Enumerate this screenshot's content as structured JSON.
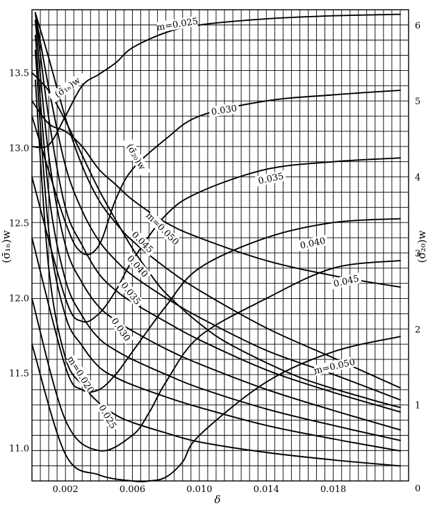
{
  "chart_data": {
    "type": "line",
    "title": "",
    "xlabel": "δ",
    "ylabel_left": "(σ̄₁ₙ)w",
    "ylabel_right": "(σ̄₂₀)w",
    "xlim": [
      0.0,
      0.0225
    ],
    "ylim_left": [
      10.78,
      13.92
    ],
    "ylim_right": [
      0,
      6.2
    ],
    "x_ticks": [
      "0.002",
      "0.006",
      "0.010",
      "0.014",
      "0.018"
    ],
    "y_left_ticks": [
      "11.0",
      "11.5",
      "12.0",
      "12.5",
      "13.0",
      "13.5"
    ],
    "y_right_ticks": [
      "0",
      "1",
      "2",
      "3",
      "4",
      "5",
      "6"
    ],
    "grid": true,
    "series": [
      {
        "name": "0.025",
        "axis": "left",
        "x": [
          0.0002,
          0.001,
          0.002,
          0.003,
          0.004,
          0.005,
          0.006,
          0.008,
          0.01,
          0.014,
          0.018,
          0.022
        ],
        "y": [
          13.65,
          12.45,
          11.88,
          11.68,
          11.54,
          11.47,
          11.42,
          11.34,
          11.27,
          11.15,
          11.06,
          10.98
        ]
      },
      {
        "name": "0.030",
        "axis": "left",
        "x": [
          0.0002,
          0.001,
          0.002,
          0.003,
          0.004,
          0.005,
          0.006,
          0.008,
          0.01,
          0.014,
          0.018,
          0.022
        ],
        "y": [
          13.75,
          12.7,
          12.12,
          11.88,
          11.73,
          11.65,
          11.59,
          11.49,
          11.4,
          11.26,
          11.15,
          11.05
        ]
      },
      {
        "name": "0.035",
        "axis": "left",
        "x": [
          0.0002,
          0.001,
          0.002,
          0.003,
          0.004,
          0.005,
          0.006,
          0.008,
          0.01,
          0.014,
          0.018,
          0.022
        ],
        "y": [
          13.85,
          12.95,
          12.35,
          12.1,
          11.94,
          11.85,
          11.78,
          11.66,
          11.56,
          11.39,
          11.25,
          11.12
        ]
      },
      {
        "name": "0.040",
        "axis": "left",
        "x": [
          0.0002,
          0.001,
          0.002,
          0.003,
          0.004,
          0.005,
          0.006,
          0.008,
          0.01,
          0.014,
          0.018,
          0.022
        ],
        "y": [
          13.9,
          13.2,
          12.6,
          12.35,
          12.16,
          12.05,
          11.97,
          11.84,
          11.72,
          11.52,
          11.37,
          11.24
        ]
      },
      {
        "name": "0.045",
        "axis": "left",
        "x": [
          0.0002,
          0.001,
          0.002,
          0.003,
          0.004,
          0.005,
          0.006,
          0.008,
          0.01,
          0.014,
          0.018,
          0.022
        ],
        "y": [
          13.9,
          13.4,
          12.88,
          12.58,
          12.38,
          12.25,
          12.15,
          12.0,
          11.87,
          11.65,
          11.49,
          11.32
        ]
      },
      {
        "name": "m=0.050",
        "axis": "left",
        "x": [
          0.0002,
          0.001,
          0.002,
          0.003,
          0.004,
          0.005,
          0.006,
          0.008,
          0.01,
          0.014,
          0.018,
          0.022
        ],
        "y": [
          13.9,
          13.6,
          13.2,
          12.88,
          12.65,
          12.5,
          12.38,
          12.2,
          12.05,
          11.8,
          11.6,
          11.4
        ]
      },
      {
        "name": "m=0.020",
        "axis": "left",
        "x": [
          0.0002,
          0.001,
          0.002,
          0.003,
          0.004,
          0.005,
          0.006,
          0.008,
          0.01,
          0.014,
          0.018,
          0.022
        ],
        "y": [
          13.45,
          12.2,
          11.6,
          11.42,
          11.3,
          11.22,
          11.17,
          11.1,
          11.04,
          10.97,
          10.92,
          10.88
        ]
      },
      {
        "name": "(σ̄₁ₙ)w",
        "axis": "left",
        "x": [
          0.0,
          0.001,
          0.002,
          0.003,
          0.004,
          0.005,
          0.006,
          0.007,
          0.008,
          0.01,
          0.012,
          0.016,
          0.02,
          0.022
        ],
        "y": [
          13.5,
          13.38,
          13.18,
          12.95,
          12.72,
          12.52,
          12.33,
          12.17,
          12.03,
          11.83,
          11.68,
          11.47,
          11.33,
          11.27
        ]
      },
      {
        "name": "m=0.025",
        "axis": "right",
        "x": [
          0.0,
          0.001,
          0.002,
          0.003,
          0.004,
          0.005,
          0.006,
          0.008,
          0.01,
          0.014,
          0.018,
          0.022
        ],
        "y": [
          4.4,
          4.42,
          4.8,
          5.2,
          5.35,
          5.5,
          5.7,
          5.9,
          6.0,
          6.08,
          6.12,
          6.14
        ]
      },
      {
        "name": "0.030",
        "axis": "right",
        "x": [
          0.0,
          0.002,
          0.003,
          0.004,
          0.005,
          0.006,
          0.008,
          0.01,
          0.014,
          0.018,
          0.022
        ],
        "y": [
          4.8,
          3.4,
          3.0,
          3.1,
          3.7,
          4.1,
          4.5,
          4.8,
          5.0,
          5.08,
          5.14
        ]
      },
      {
        "name": "0.035",
        "axis": "right",
        "x": [
          0.0,
          0.002,
          0.003,
          0.004,
          0.005,
          0.006,
          0.008,
          0.01,
          0.014,
          0.018,
          0.022
        ],
        "y": [
          4.0,
          2.4,
          2.1,
          2.2,
          2.5,
          2.9,
          3.5,
          3.8,
          4.1,
          4.2,
          4.25
        ]
      },
      {
        "name": "0.040",
        "axis": "right",
        "x": [
          0.0,
          0.002,
          0.003,
          0.004,
          0.005,
          0.006,
          0.008,
          0.01,
          0.014,
          0.018,
          0.022
        ],
        "y": [
          3.2,
          1.5,
          1.2,
          1.2,
          1.4,
          1.7,
          2.3,
          2.8,
          3.2,
          3.4,
          3.45
        ]
      },
      {
        "name": "0.045",
        "axis": "right",
        "x": [
          0.0,
          0.002,
          0.004,
          0.006,
          0.007,
          0.008,
          0.01,
          0.014,
          0.018,
          0.022
        ],
        "y": [
          2.4,
          0.8,
          0.4,
          0.6,
          0.9,
          1.3,
          1.9,
          2.4,
          2.8,
          2.9
        ]
      },
      {
        "name": "m=0.050",
        "axis": "right",
        "x": [
          0.0,
          0.002,
          0.004,
          0.006,
          0.007,
          0.008,
          0.009,
          0.01,
          0.014,
          0.018,
          0.022
        ],
        "y": [
          1.8,
          0.35,
          0.08,
          0.0,
          0.0,
          0.05,
          0.25,
          0.6,
          1.3,
          1.7,
          1.9
        ]
      },
      {
        "name": "(σ̄₂₀)w",
        "axis": "right",
        "x": [
          0.0,
          0.001,
          0.002,
          0.003,
          0.004,
          0.005,
          0.006,
          0.008,
          0.01,
          0.014,
          0.018,
          0.022
        ],
        "y": [
          5.0,
          4.7,
          4.6,
          4.4,
          4.1,
          3.9,
          3.7,
          3.4,
          3.2,
          2.9,
          2.7,
          2.55
        ]
      }
    ]
  }
}
